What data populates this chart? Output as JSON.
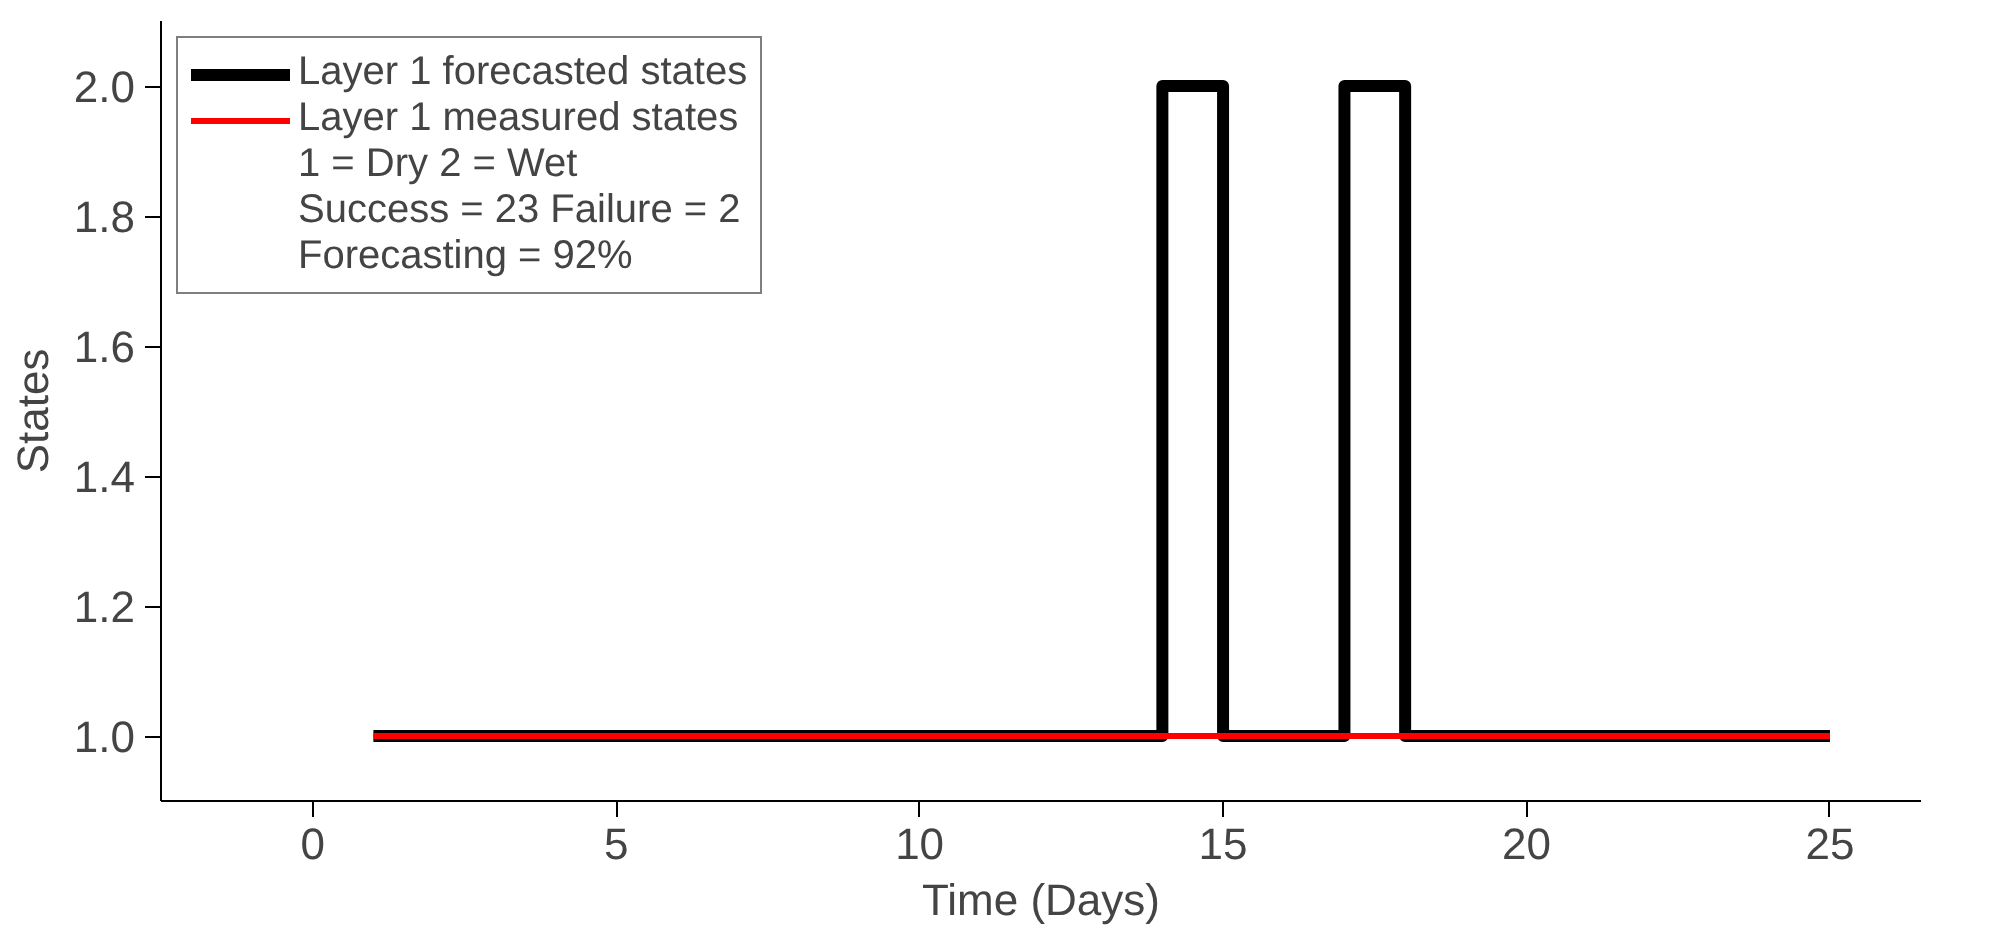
{
  "chart_data": {
    "type": "line",
    "xlabel": "Time (Days)",
    "ylabel": "States",
    "xlim": [
      -2.5,
      26.5
    ],
    "xticks": [
      0,
      5,
      10,
      15,
      20,
      25
    ],
    "ylim": [
      0.9,
      2.1
    ],
    "yticks": [
      {
        "value": 1.0,
        "label": "1.0"
      },
      1.2,
      1.4,
      1.6,
      1.8,
      {
        "value": 2.0,
        "label": "2.0"
      }
    ],
    "grid": false,
    "legend": "top left",
    "marker": "none",
    "line_style": "solid",
    "annotations": [
      "1 = Dry 2 = Wet",
      "Success = 23 Failure = 2",
      "Forecasting = 92%"
    ],
    "series": [
      {
        "name": "Layer 1 forecasted states",
        "color": "#000000",
        "x": [
          1,
          14,
          14,
          15,
          15,
          17,
          17,
          18,
          18,
          25
        ],
        "values": [
          1,
          1,
          2,
          2,
          1,
          1,
          2,
          2,
          1,
          1
        ]
      },
      {
        "name": "Layer 1 measured states",
        "color": "#ff0000",
        "x": [
          1,
          25
        ],
        "values": [
          1,
          1
        ]
      }
    ]
  }
}
